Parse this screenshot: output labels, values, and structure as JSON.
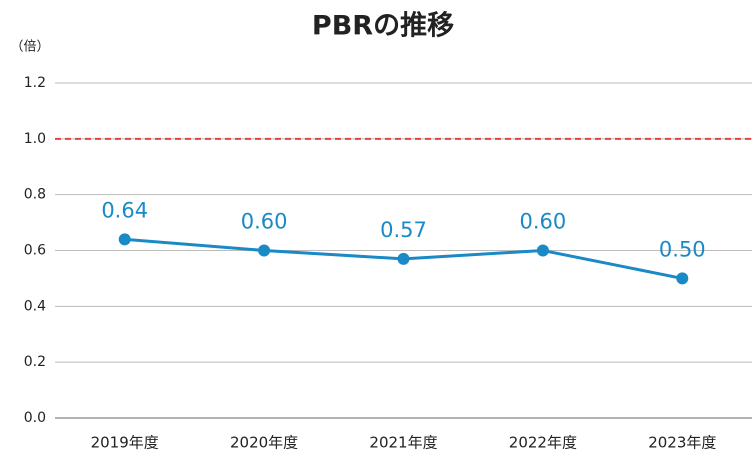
{
  "chart_data": {
    "type": "line",
    "title": "PBRの推移",
    "y_unit": "（倍）",
    "categories": [
      "2019年度",
      "2020年度",
      "2021年度",
      "2022年度",
      "2023年度"
    ],
    "series": [
      {
        "name": "PBR",
        "color": "#1a8ac6",
        "values": [
          0.64,
          0.6,
          0.57,
          0.6,
          0.5
        ],
        "value_labels": [
          "0.64",
          "0.60",
          "0.57",
          "0.60",
          "0.50"
        ]
      }
    ],
    "ylim": [
      0,
      1.2
    ],
    "yticks": [
      {
        "value": 0,
        "label": "0.0"
      },
      0.2,
      0.4,
      0.6,
      0.8,
      {
        "value": 1,
        "label": "1.0"
      },
      1.2
    ],
    "grid": true,
    "reference_line": {
      "value": 1,
      "color": "#e0443c"
    }
  }
}
